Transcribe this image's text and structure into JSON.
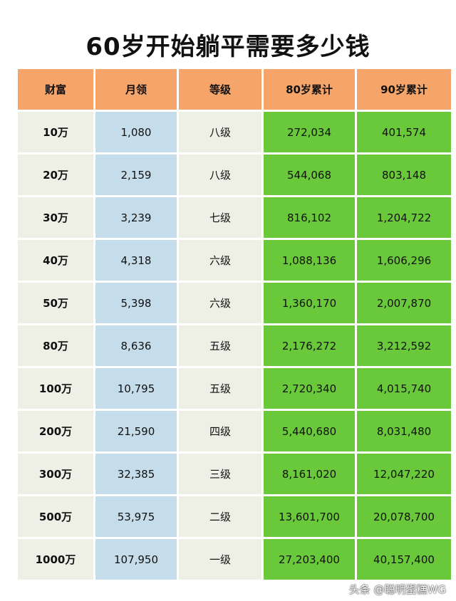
{
  "title": "60岁开始躺平需要多少钱",
  "headers": [
    "财富",
    "月领",
    "等级",
    "80岁累计",
    "90岁累计"
  ],
  "rows": [
    [
      "10万",
      "1,080",
      "八级",
      "272,034",
      "401,574"
    ],
    [
      "20万",
      "2,159",
      "八级",
      "544,068",
      "803,148"
    ],
    [
      "30万",
      "3,239",
      "七级",
      "816,102",
      "1,204,722"
    ],
    [
      "40万",
      "4,318",
      "六级",
      "1,088,136",
      "1,606,296"
    ],
    [
      "50万",
      "5,398",
      "六级",
      "1,360,170",
      "2,007,870"
    ],
    [
      "80万",
      "8,636",
      "五级",
      "2,176,272",
      "3,212,592"
    ],
    [
      "100万",
      "10,795",
      "五级",
      "2,720,340",
      "4,015,740"
    ],
    [
      "200万",
      "21,590",
      "四级",
      "5,440,680",
      "8,031,480"
    ],
    [
      "300万",
      "32,385",
      "三级",
      "8,161,020",
      "12,047,220"
    ],
    [
      "500万",
      "53,975",
      "二级",
      "13,601,700",
      "20,078,700"
    ],
    [
      "1000万",
      "107,950",
      "一级",
      "27,203,400",
      "40,157,400"
    ]
  ],
  "watermark": "头条 @聪明蛋糕WG"
}
